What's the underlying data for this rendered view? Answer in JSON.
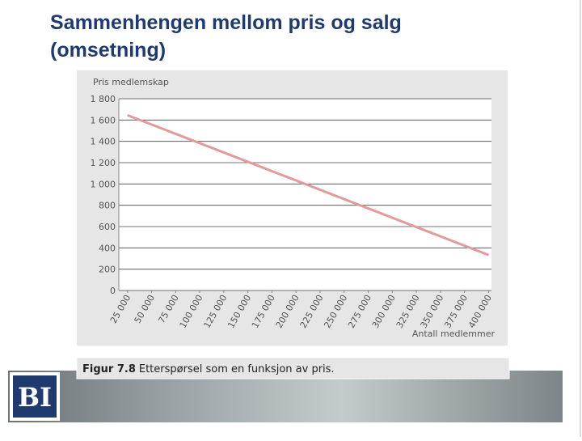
{
  "slide": {
    "title_lines": [
      "Sammenhengen mellom pris og salg",
      "(omsetning)"
    ],
    "caption_number": "Figur 7.8",
    "caption_text": "Etterspørsel som en funksjon av pris.",
    "logo": "BI"
  },
  "chart_data": {
    "type": "line",
    "y_label": "Pris medlemskap",
    "x_label": "Antall medlemmer",
    "x": [
      25000,
      400000
    ],
    "series": [
      {
        "name": "Etterspørsel",
        "color": "#e49a9a",
        "values": [
          1645,
          333
        ]
      }
    ],
    "xlim": [
      16000,
      403000
    ],
    "xticks": [
      {
        "value": 25000,
        "label": "25 000"
      },
      {
        "value": 50000,
        "label": "50 000"
      },
      {
        "value": 75000,
        "label": "75 000"
      },
      {
        "value": 100000,
        "label": "100 000"
      },
      {
        "value": 125000,
        "label": "125 000"
      },
      {
        "value": 150000,
        "label": "150 000"
      },
      {
        "value": 175000,
        "label": "175 000"
      },
      {
        "value": 200000,
        "label": "200 000"
      },
      {
        "value": 225000,
        "label": "225 000"
      },
      {
        "value": 250000,
        "label": "250 000"
      },
      {
        "value": 275000,
        "label": "275 000"
      },
      {
        "value": 300000,
        "label": "300 000"
      },
      {
        "value": 325000,
        "label": "325 000"
      },
      {
        "value": 350000,
        "label": "350 000"
      },
      {
        "value": 375000,
        "label": "375 000"
      },
      {
        "value": 400000,
        "label": "400 000"
      }
    ],
    "ylim": [
      0,
      1800
    ],
    "yticks": [
      0,
      200,
      400,
      600,
      800,
      {
        "value": 1000,
        "label": "1 000"
      },
      {
        "value": 1200,
        "label": "1 200"
      },
      {
        "value": 1400,
        "label": "1 400"
      },
      {
        "value": 1600,
        "label": "1 600"
      },
      {
        "value": 1800,
        "label": "1 800"
      }
    ],
    "grid": true
  }
}
